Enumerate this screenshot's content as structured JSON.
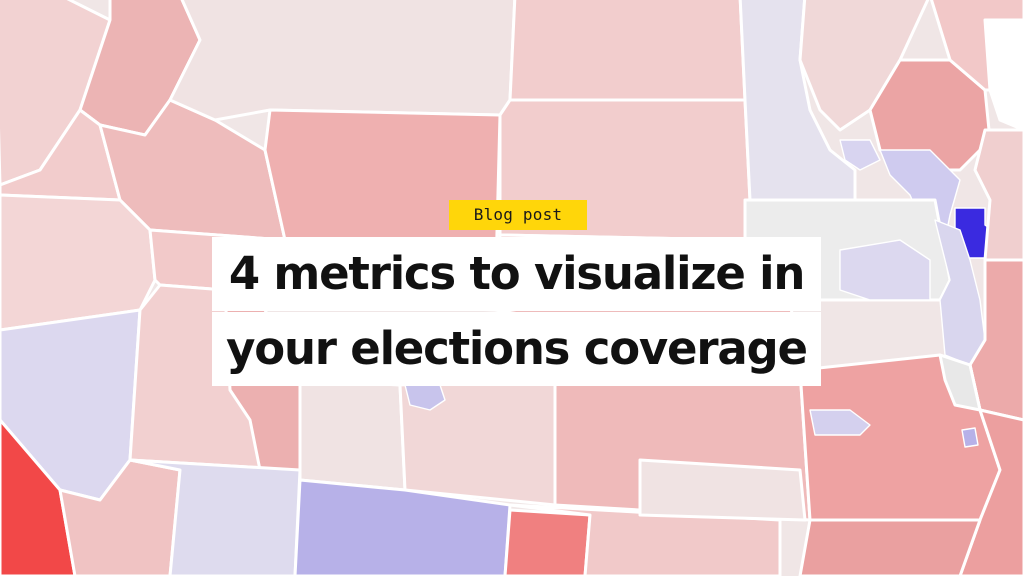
{
  "badge": {
    "label": "Blog post",
    "color": "#ffd60a"
  },
  "title": {
    "line1": "4 metrics to visualize in",
    "line2": "your elections coverage"
  },
  "map": {
    "kind": "election-results-choropleth",
    "palette": {
      "strong_red": "#f24848",
      "red": "#f08080",
      "medium_red": "#ecaaaa",
      "light_red": "#f2c8c8",
      "faint_red": "#f0e3e3",
      "neutral": "#ececec",
      "light_blue": "#d9d6ee",
      "medium_blue": "#b7b1e8",
      "strong_blue": "#3a2ae0"
    }
  }
}
